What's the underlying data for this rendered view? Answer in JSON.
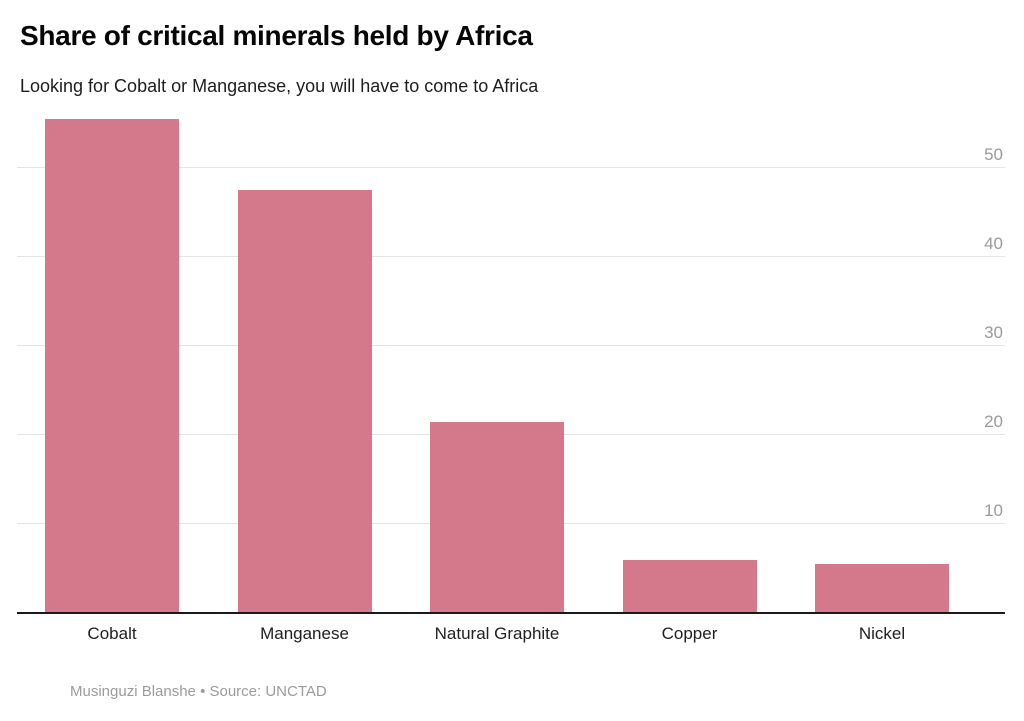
{
  "title": "Share of critical minerals held by Africa",
  "subtitle": "Looking for Cobalt or Manganese, you will have to come to Africa",
  "footer": "Musinguzi Blanshe • Source: UNCTAD",
  "colors": {
    "bar": "#d3798b",
    "gridline": "#e4e4e4",
    "axis_line": "#1a1a1a",
    "tick_label": "#9a9a9a",
    "title": "#060606",
    "subtitle": "#1d1d1d",
    "category_label": "#202020",
    "footer": "#9b9b9b",
    "background": "#ffffff"
  },
  "chart_data": {
    "type": "bar",
    "categories": [
      "Cobalt",
      "Manganese",
      "Natural Graphite",
      "Copper",
      "Nickel"
    ],
    "values": [
      55.5,
      47.5,
      21.5,
      5.9,
      5.5
    ],
    "title": "Share of critical minerals held by Africa",
    "subtitle": "Looking for Cobalt or Manganese, you will have to come to Africa",
    "xlabel": "",
    "ylabel": "",
    "ylim": [
      0,
      56.5
    ],
    "yticks": [
      10,
      20,
      30,
      40,
      50
    ],
    "ytick_side": "right",
    "grid": true,
    "legend": false,
    "bar_color": "#d3798b",
    "source_line": "Musinguzi Blanshe • Source: UNCTAD"
  }
}
